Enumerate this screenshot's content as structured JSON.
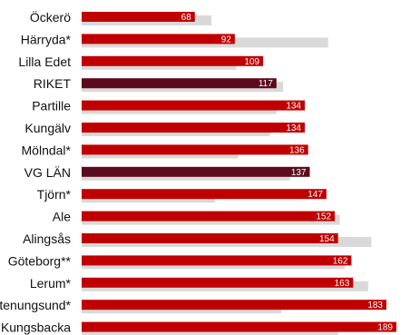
{
  "chart_data": {
    "type": "bar",
    "orientation": "horizontal",
    "categories": [
      "Öckerö",
      "Härryda*",
      "Lilla Edet",
      "RIKET",
      "Partille",
      "Kungälv",
      "Mölndal*",
      "VG LÄN",
      "Tjörn*",
      "Ale",
      "Alingsås",
      "Göteborg**",
      "Lerum*",
      "Stenungsund*",
      "Kungsbacka"
    ],
    "series": [
      {
        "values": [
          68,
          92,
          109,
          117,
          134,
          134,
          136,
          137,
          147,
          152,
          154,
          162,
          163,
          183,
          189
        ]
      },
      {
        "values": [
          78,
          148,
          93,
          121,
          117,
          113,
          94,
          125,
          80,
          155,
          174,
          158,
          172,
          120,
          154
        ]
      }
    ],
    "highlighted_categories": [
      "RIKET",
      "VG LÄN"
    ],
    "colors": {
      "primary": "#c00000",
      "highlight": "#5c0a1e",
      "comparison": "#d9d9d9",
      "value_label": "#ffffff",
      "category_label": "#111111"
    },
    "xlim": [
      0,
      195
    ],
    "title": "",
    "xlabel": "",
    "ylabel": "",
    "grid": false,
    "legend": "none"
  }
}
